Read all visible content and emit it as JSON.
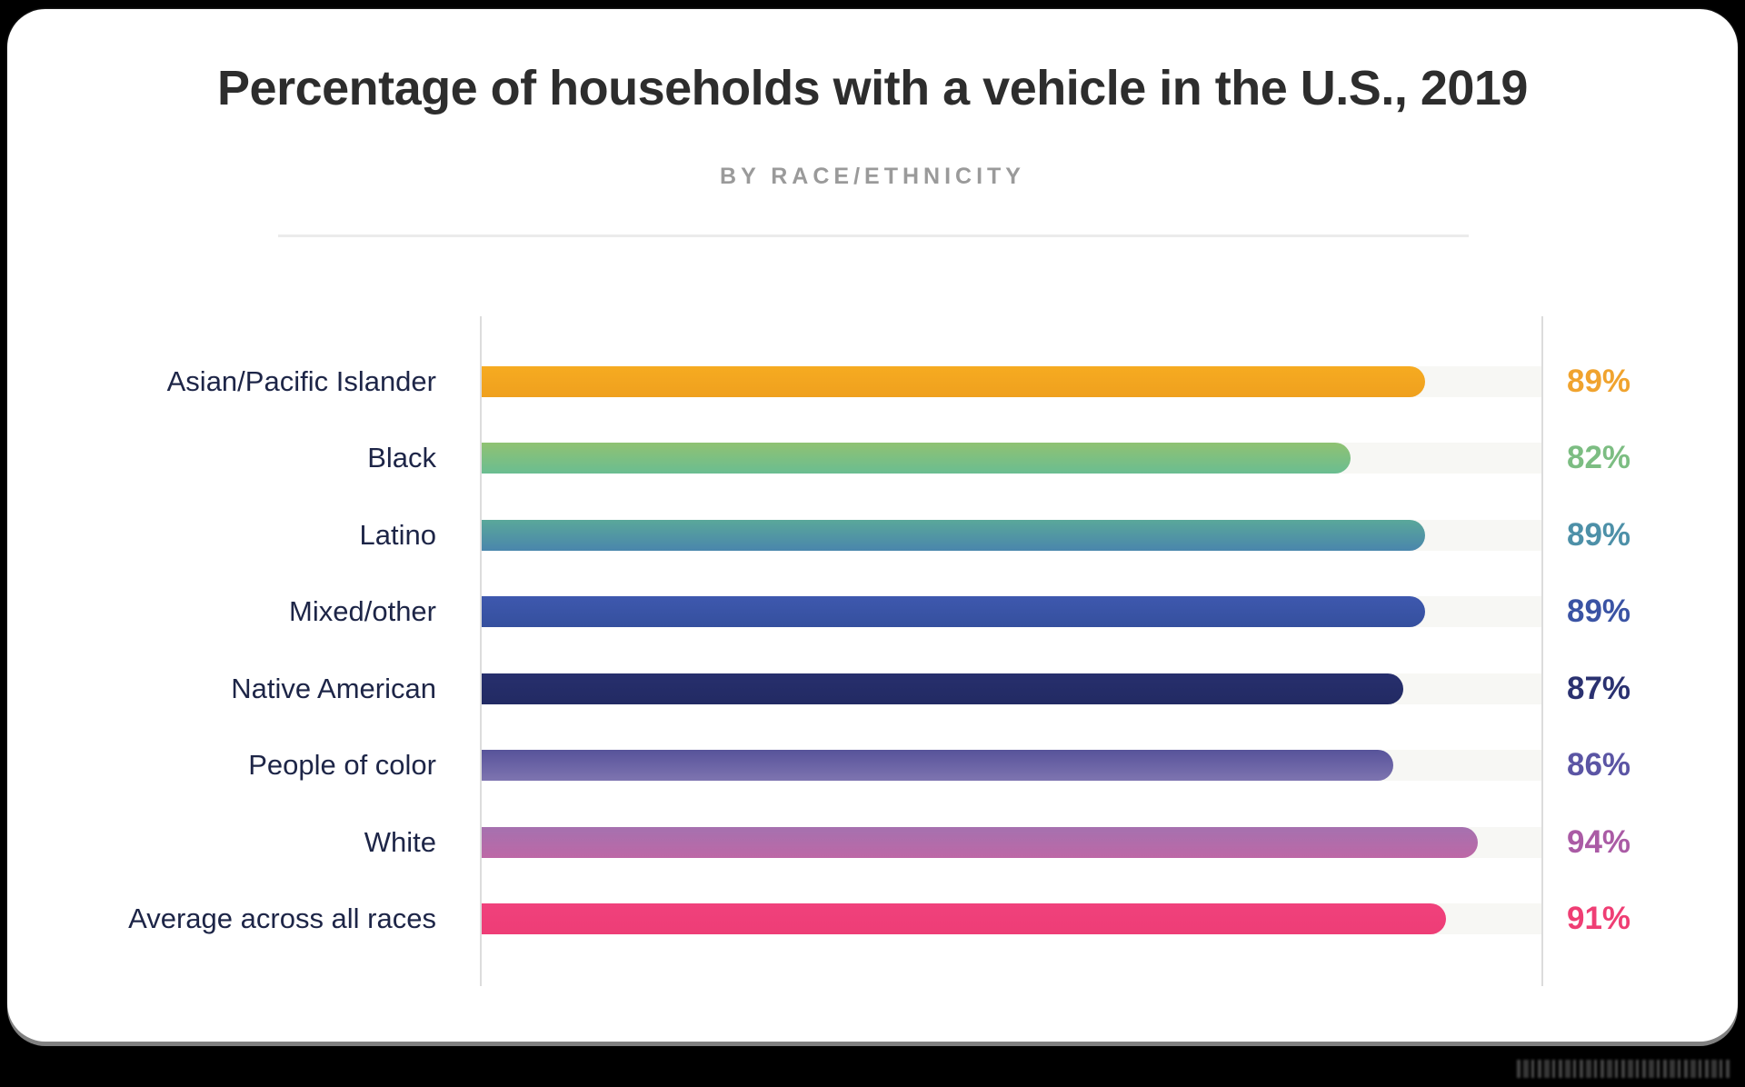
{
  "page": {
    "background_color": "#000000",
    "card_color": "#FFFFFF"
  },
  "header": {
    "title": "Percentage of households with a vehicle in the U.S., 2019",
    "subtitle": "BY RACE/ETHNICITY"
  },
  "chart_data": {
    "type": "bar",
    "orientation": "horizontal",
    "title": "Percentage of households with a vehicle in the U.S., 2019",
    "subtitle": "BY RACE/ETHNICITY",
    "xlabel": "",
    "ylabel": "",
    "xlim": [
      0,
      100
    ],
    "grid": false,
    "legend": false,
    "value_suffix": "%",
    "categories": [
      "Asian/Pacific Islander",
      "Black",
      "Latino",
      "Mixed/other",
      "Native American",
      "People of color",
      "White",
      "Average across all races"
    ],
    "values": [
      89,
      82,
      89,
      89,
      87,
      86,
      94,
      91
    ],
    "rows": [
      {
        "label": "Asian/Pacific Islander",
        "value": 89,
        "display": "89%",
        "color_top": "#F6AB21",
        "color_bottom": "#EFA01E",
        "value_color": "#F0A32E"
      },
      {
        "label": "Black",
        "value": 82,
        "display": "82%",
        "color_top": "#90C272",
        "color_bottom": "#6ABD91",
        "value_color": "#7CBD82"
      },
      {
        "label": "Latino",
        "value": 89,
        "display": "89%",
        "color_top": "#5AA89A",
        "color_bottom": "#4A86AC",
        "value_color": "#4D90A8"
      },
      {
        "label": "Mixed/other",
        "value": 89,
        "display": "89%",
        "color_top": "#3E58AE",
        "color_bottom": "#35509E",
        "value_color": "#3A53A4"
      },
      {
        "label": "Native American",
        "value": 87,
        "display": "87%",
        "color_top": "#272F6D",
        "color_bottom": "#222A63",
        "value_color": "#2A3170"
      },
      {
        "label": "People of color",
        "value": 86,
        "display": "86%",
        "color_top": "#57539A",
        "color_bottom": "#7E74B0",
        "value_color": "#5B55A4"
      },
      {
        "label": "White",
        "value": 94,
        "display": "94%",
        "color_top": "#A571AF",
        "color_bottom": "#BD68A6",
        "value_color": "#AA5BA5"
      },
      {
        "label": "Average across all races",
        "value": 91,
        "display": "91%",
        "color_top": "#F0417C",
        "color_bottom": "#EE3D76",
        "value_color": "#EF3E74"
      }
    ],
    "colors": {
      "track": "#F7F7F4",
      "axis_line": "#DCDCDC",
      "divider": "#EBEBEB",
      "label_text": "#1D2547",
      "title_text": "#2D2D2D",
      "subtitle_text": "#9A9A9A"
    }
  }
}
